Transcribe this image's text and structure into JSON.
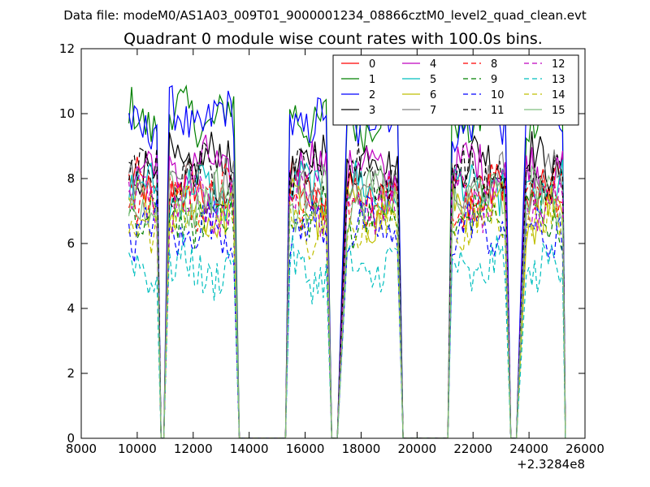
{
  "chart_data": {
    "type": "line",
    "suptitle": "Data file: modeM0/AS1A03_009T01_9000001234_08866cztM0_level2_quad_clean.evt",
    "title": "Quadrant 0 module wise count rates with 100.0s bins.",
    "xlabel": "",
    "ylabel": "",
    "x_offset_label": "+2.3284e8",
    "xlim": [
      8000,
      26000
    ],
    "ylim": [
      0,
      12
    ],
    "xticks": [
      8000,
      10000,
      12000,
      14000,
      16000,
      18000,
      20000,
      22000,
      24000,
      26000
    ],
    "xtick_labels": [
      "8000",
      "10000",
      "12000",
      "14000",
      "16000",
      "18000",
      "20000",
      "22000",
      "24000",
      "26000"
    ],
    "yticks": [
      0,
      2,
      4,
      6,
      8,
      10,
      12
    ],
    "ytick_labels": [
      "0",
      "2",
      "4",
      "6",
      "8",
      "10",
      "12"
    ],
    "grid": false,
    "legend_position": "top-right",
    "segments": [
      {
        "start": 9700,
        "end": 10750,
        "fall_end": 10850
      },
      {
        "start": 11150,
        "end": 13500,
        "rise_start": 10950,
        "fall_end": 13650
      },
      {
        "start": 15450,
        "end": 16800,
        "rise_start": 15300,
        "fall_end": 16950
      },
      {
        "start": 17500,
        "end": 19350,
        "rise_start": 17150,
        "fall_end": 19500
      },
      {
        "start": 21250,
        "end": 23200,
        "rise_start": 21100,
        "fall_end": 23350
      },
      {
        "start": 23900,
        "end": 25200,
        "rise_start": 23550,
        "fall_end": 25300
      }
    ],
    "series": [
      {
        "name": "0",
        "color": "#ff0000",
        "dash": "solid",
        "level": 7.6
      },
      {
        "name": "1",
        "color": "#008000",
        "dash": "solid",
        "level": 9.9
      },
      {
        "name": "2",
        "color": "#0000ff",
        "dash": "solid",
        "level": 9.8
      },
      {
        "name": "3",
        "color": "#000000",
        "dash": "solid",
        "level": 8.5
      },
      {
        "name": "4",
        "color": "#bf00bf",
        "dash": "solid",
        "level": 8.3
      },
      {
        "name": "5",
        "color": "#00bfbf",
        "dash": "solid",
        "level": 7.6
      },
      {
        "name": "6",
        "color": "#bfbf00",
        "dash": "solid",
        "level": 7.0
      },
      {
        "name": "7",
        "color": "#808080",
        "dash": "solid",
        "level": 7.9
      },
      {
        "name": "8",
        "color": "#ff0000",
        "dash": "dashed",
        "level": 7.4
      },
      {
        "name": "9",
        "color": "#008000",
        "dash": "dashed",
        "level": 6.8
      },
      {
        "name": "10",
        "color": "#0000ff",
        "dash": "dashed",
        "level": 6.4
      },
      {
        "name": "11",
        "color": "#000000",
        "dash": "dashed",
        "level": 8.1
      },
      {
        "name": "12",
        "color": "#bf00bf",
        "dash": "dashed",
        "level": 7.3
      },
      {
        "name": "13",
        "color": "#00bfbf",
        "dash": "dashed",
        "level": 5.2
      },
      {
        "name": "14",
        "color": "#bfbf00",
        "dash": "dashed",
        "level": 6.6
      },
      {
        "name": "15",
        "color": "#7fbf7f",
        "dash": "solid",
        "level": 7.4
      }
    ]
  }
}
